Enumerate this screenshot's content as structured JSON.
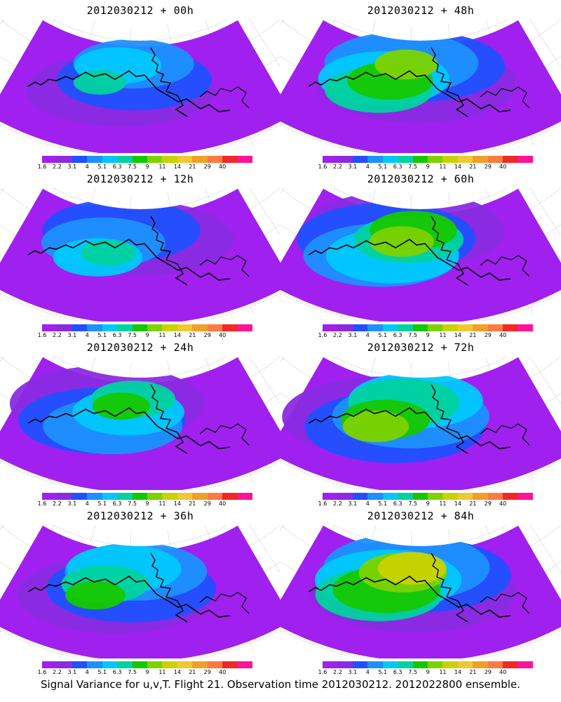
{
  "panels": [
    {
      "title": "2012030212 + 00h",
      "level": 0.25
    },
    {
      "title": "2012030212 + 48h",
      "level": 0.62
    },
    {
      "title": "2012030212 + 12h",
      "level": 0.35
    },
    {
      "title": "2012030212 + 60h",
      "level": 0.68
    },
    {
      "title": "2012030212 + 24h",
      "level": 0.42
    },
    {
      "title": "2012030212 + 72h",
      "level": 0.74
    },
    {
      "title": "2012030212 + 36h",
      "level": 0.52
    },
    {
      "title": "2012030212 + 84h",
      "level": 0.82
    }
  ],
  "colorbar": {
    "labels": [
      "1.6",
      "2.2",
      "3.1",
      "4",
      "5.1",
      "6.3",
      "7.5",
      "9",
      "11",
      "14",
      "21",
      "29",
      "40"
    ],
    "colors": [
      "#a020f0",
      "#8a2be2",
      "#2050ff",
      "#1e90ff",
      "#00c8ff",
      "#00d2a0",
      "#14c800",
      "#7cd200",
      "#c8d200",
      "#f0c832",
      "#f0a028",
      "#ff7a40",
      "#f02828",
      "#ff1493"
    ]
  },
  "caption": "Signal Variance for u,v,T. Flight 21. Observation time 2012030212. 2012022800 ensemble."
}
